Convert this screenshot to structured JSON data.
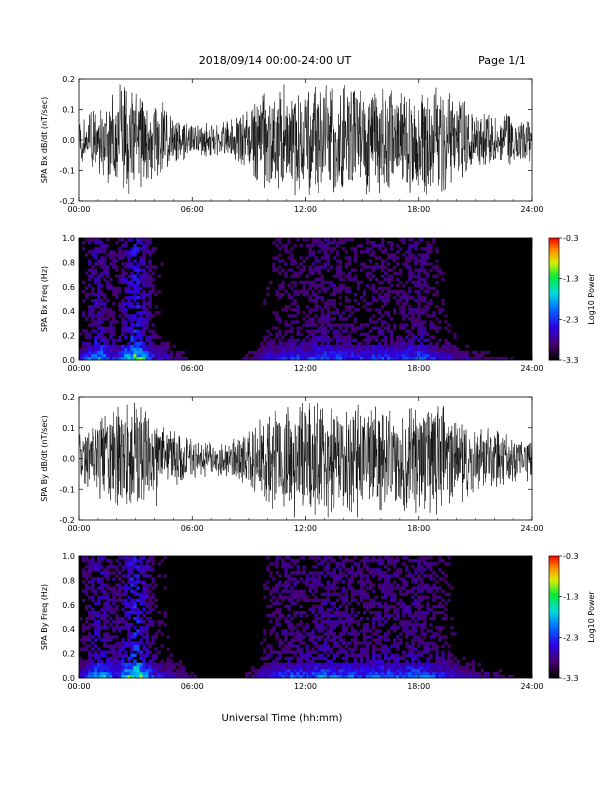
{
  "header": {
    "title": "2018/09/14  00:00-24:00 UT",
    "page": "Page 1/1"
  },
  "x_axis": {
    "label": "Universal Time (hh:mm)",
    "ticks": [
      "00:00",
      "06:00",
      "12:00",
      "18:00",
      "24:00"
    ],
    "range_hours": [
      0,
      24
    ]
  },
  "colorbar": {
    "label": "Log10 Power",
    "ticks": [
      "-0.3",
      "-1.3",
      "-2.3",
      "-3.3"
    ],
    "range": [
      -3.3,
      -0.3
    ]
  },
  "chart_data": [
    {
      "type": "line",
      "title": "",
      "ylabel": "SPA Bx dB/dt (nT/sec)",
      "yticks": [
        "0.2",
        "0.1",
        "0.0",
        "-0.1",
        "-0.2"
      ],
      "ylim": [
        -0.2,
        0.2
      ],
      "xlim": [
        "00:00",
        "24:00"
      ],
      "envelope_hours": [
        0,
        1,
        2,
        3,
        4,
        5,
        6,
        7,
        8,
        9,
        10,
        11,
        12,
        13,
        14,
        15,
        16,
        17,
        18,
        19,
        20,
        21,
        22,
        23,
        24
      ],
      "envelope_amplitude": [
        0.08,
        0.13,
        0.2,
        0.2,
        0.16,
        0.09,
        0.06,
        0.06,
        0.07,
        0.12,
        0.2,
        0.2,
        0.2,
        0.2,
        0.2,
        0.2,
        0.2,
        0.17,
        0.2,
        0.2,
        0.16,
        0.12,
        0.1,
        0.09,
        0.08
      ]
    },
    {
      "type": "heatmap",
      "title": "",
      "ylabel": "SPA Bx Freq (Hz)",
      "yticks": [
        "1.0",
        "0.8",
        "0.6",
        "0.4",
        "0.2",
        "0.0"
      ],
      "ylim": [
        0,
        1.0
      ],
      "xlim": [
        "00:00",
        "24:00"
      ],
      "zlim": [
        -3.3,
        -0.3
      ],
      "activity_hours": [
        0,
        1,
        2,
        3,
        4,
        5,
        6,
        7,
        8,
        9,
        10,
        11,
        12,
        13,
        14,
        15,
        16,
        17,
        18,
        19,
        20,
        21,
        22,
        23,
        24
      ],
      "low_freq_log_power": [
        -2.5,
        -1.3,
        -2.1,
        -0.5,
        -2.2,
        -2.6,
        -2.9,
        -3.0,
        -3.0,
        -2.8,
        -2.3,
        -2.0,
        -2.1,
        -1.8,
        -2.0,
        -2.1,
        -1.9,
        -2.1,
        -1.7,
        -2.2,
        -2.5,
        -2.7,
        -2.8,
        -2.9,
        -3.0
      ]
    },
    {
      "type": "line",
      "title": "",
      "ylabel": "SPA By dB/dt (nT/sec)",
      "yticks": [
        "0.2",
        "0.1",
        "0.0",
        "-0.1",
        "-0.2"
      ],
      "ylim": [
        -0.2,
        0.2
      ],
      "xlim": [
        "00:00",
        "24:00"
      ],
      "envelope_hours": [
        0,
        1,
        2,
        3,
        4,
        5,
        6,
        7,
        8,
        9,
        10,
        11,
        12,
        13,
        14,
        15,
        16,
        17,
        18,
        19,
        20,
        21,
        22,
        23,
        24
      ],
      "envelope_amplitude": [
        0.09,
        0.14,
        0.2,
        0.2,
        0.17,
        0.1,
        0.07,
        0.06,
        0.07,
        0.1,
        0.17,
        0.2,
        0.2,
        0.2,
        0.2,
        0.2,
        0.2,
        0.18,
        0.2,
        0.2,
        0.17,
        0.13,
        0.11,
        0.09,
        0.08
      ]
    },
    {
      "type": "heatmap",
      "title": "",
      "ylabel": "SPA By Freq (Hz)",
      "yticks": [
        "1.0",
        "0.8",
        "0.6",
        "0.4",
        "0.2",
        "0.0"
      ],
      "ylim": [
        0,
        1.0
      ],
      "xlim": [
        "00:00",
        "24:00"
      ],
      "zlim": [
        -3.3,
        -0.3
      ],
      "activity_hours": [
        0,
        1,
        2,
        3,
        4,
        5,
        6,
        7,
        8,
        9,
        10,
        11,
        12,
        13,
        14,
        15,
        16,
        17,
        18,
        19,
        20,
        21,
        22,
        23,
        24
      ],
      "low_freq_log_power": [
        -2.4,
        -1.2,
        -2.0,
        -0.4,
        -2.1,
        -2.5,
        -2.8,
        -3.0,
        -3.0,
        -2.8,
        -2.2,
        -1.8,
        -1.9,
        -1.6,
        -1.8,
        -1.9,
        -1.7,
        -1.9,
        -1.6,
        -2.0,
        -2.4,
        -2.6,
        -2.7,
        -2.9,
        -3.0
      ]
    }
  ]
}
